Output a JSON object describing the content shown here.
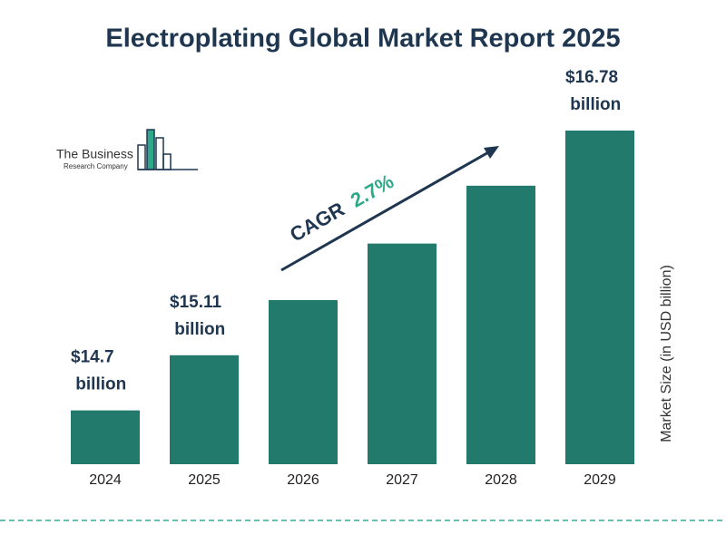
{
  "chart_data": {
    "type": "bar",
    "title": "Electroplating Global Market Report 2025",
    "categories": [
      "2024",
      "2025",
      "2026",
      "2027",
      "2028",
      "2029"
    ],
    "values": [
      14.7,
      15.11,
      15.52,
      15.94,
      16.37,
      16.78
    ],
    "value_labels": [
      "$14.7 billion",
      "$15.11 billion",
      null,
      null,
      null,
      "$16.78 billion"
    ],
    "color": "#217a6b",
    "ylim": [
      14.3,
      16.78
    ],
    "y_axis_label": "Market Size (in USD billion)",
    "cagr_label": "CAGR",
    "cagr_value": "2.7%"
  },
  "logo": {
    "line1": "The Business",
    "line2": "Research Company"
  }
}
